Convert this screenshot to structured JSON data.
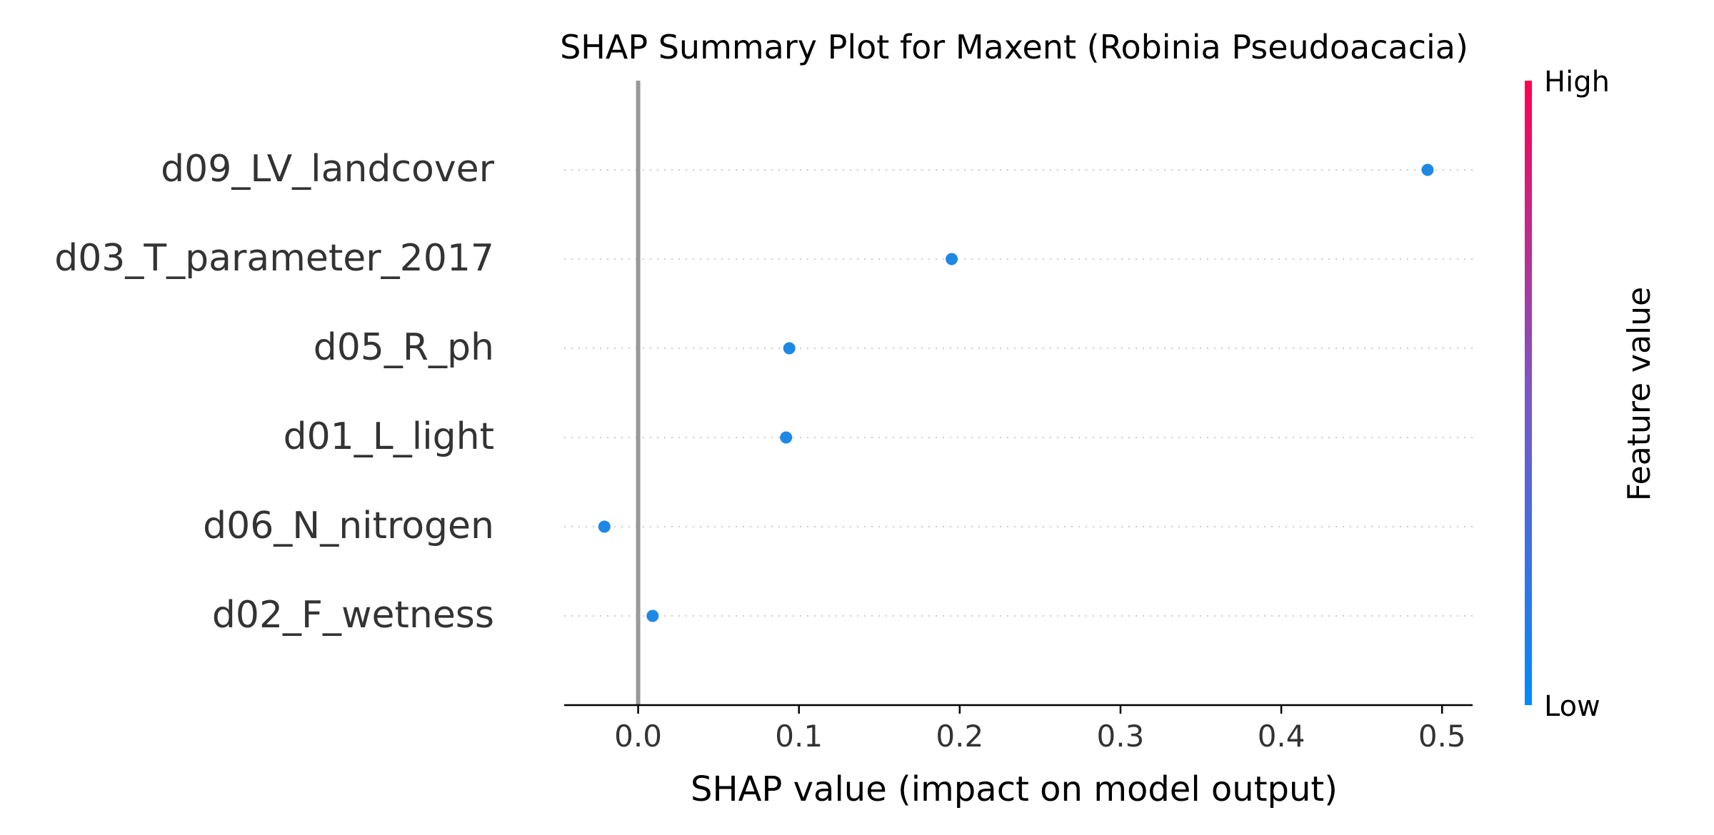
{
  "chart_data": {
    "type": "scatter",
    "title": "SHAP Summary Plot for Maxent (Robinia Pseudoacacia)",
    "xlabel": "SHAP value (impact on model output)",
    "ylabel": "",
    "xlim": [
      -0.046,
      0.519
    ],
    "x_ticks": [
      "0.0",
      "0.1",
      "0.2",
      "0.3",
      "0.4",
      "0.5"
    ],
    "features": [
      "d09_LV_landcover",
      "d03_T_parameter_2017",
      "d05_R_ph",
      "d01_L_light",
      "d06_N_nitrogen",
      "d02_F_wetness"
    ],
    "values": [
      0.491,
      0.195,
      0.094,
      0.092,
      -0.021,
      0.009
    ],
    "point_color": "#1e88e5",
    "zero_line_color": "#999999",
    "grid": "dotted horizontal lines per feature",
    "colorbar": {
      "label": "Feature value",
      "high_label": "High",
      "low_label": "Low",
      "high_color": "#ff0052",
      "low_color": "#008bfb"
    }
  }
}
